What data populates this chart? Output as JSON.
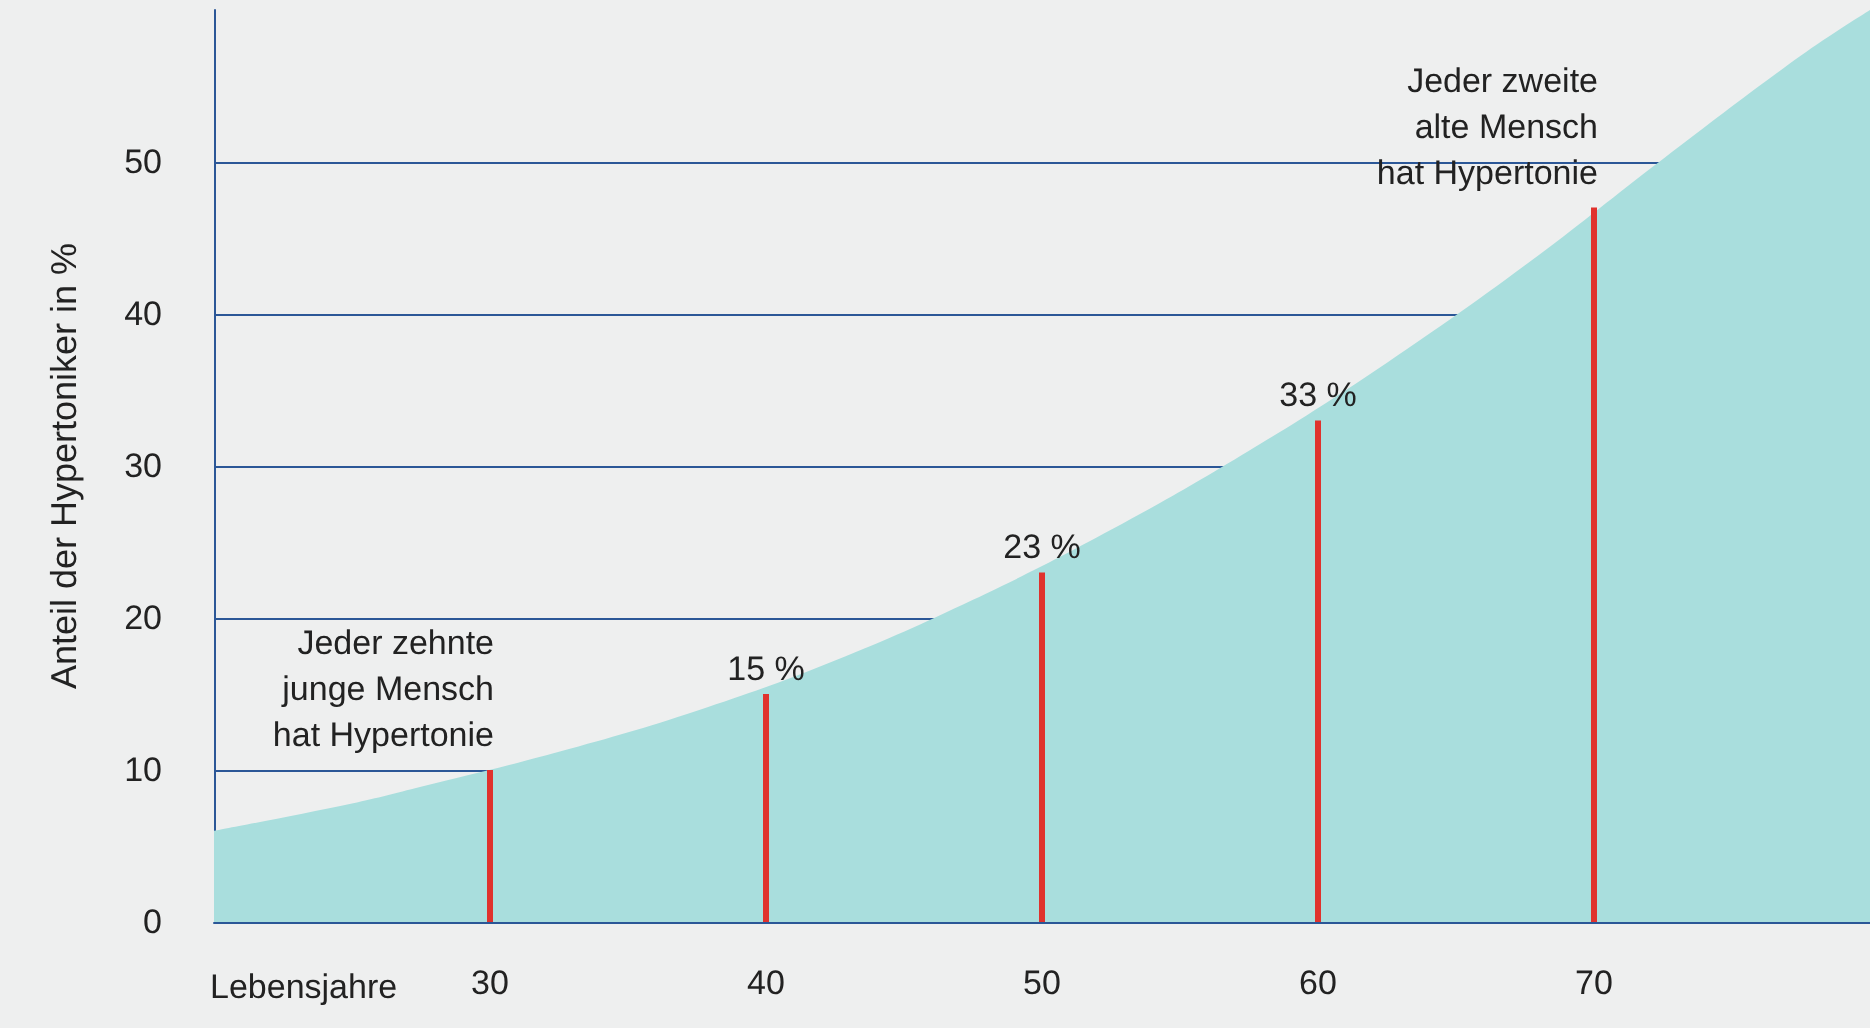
{
  "chart_data": {
    "type": "area",
    "xlabel": "Lebensjahre",
    "ylabel": "Anteil der Hypertoniker in %",
    "xlim": [
      20,
      80
    ],
    "xticks": [
      30,
      40,
      50,
      60,
      70
    ],
    "ylim": [
      0,
      60
    ],
    "yticks": [
      0,
      10,
      20,
      30,
      40,
      50
    ],
    "grid": "y",
    "series": [
      {
        "color": "#a9dedd",
        "x": [
          20,
          25,
          27.5,
          32.5,
          37.5,
          42.5,
          47.5,
          52.5,
          57.5,
          62.5,
          67.5,
          72.5,
          77.5,
          80
        ],
        "values": [
          6,
          7.8,
          8.9,
          11.2,
          13.9,
          17.2,
          21.2,
          25.8,
          31,
          36.8,
          43.2,
          50.2,
          57,
          60
        ]
      },
      {
        "type": "bar",
        "color": "#e0322d",
        "x": [
          30,
          40,
          50,
          60,
          70
        ],
        "values": [
          10,
          15,
          23,
          33,
          47
        ],
        "value_labels": [
          null,
          "15 %",
          "23 %",
          "33 %",
          null
        ]
      }
    ],
    "annotations": [
      {
        "text": "Jeder zehnte\njunge Mensch\nhat Hypertonie",
        "x": 30,
        "y": 10
      },
      {
        "text": "Jeder zweite\nalte Mensch\nhat Hypertonie",
        "x": 70,
        "y": 47
      }
    ]
  }
}
